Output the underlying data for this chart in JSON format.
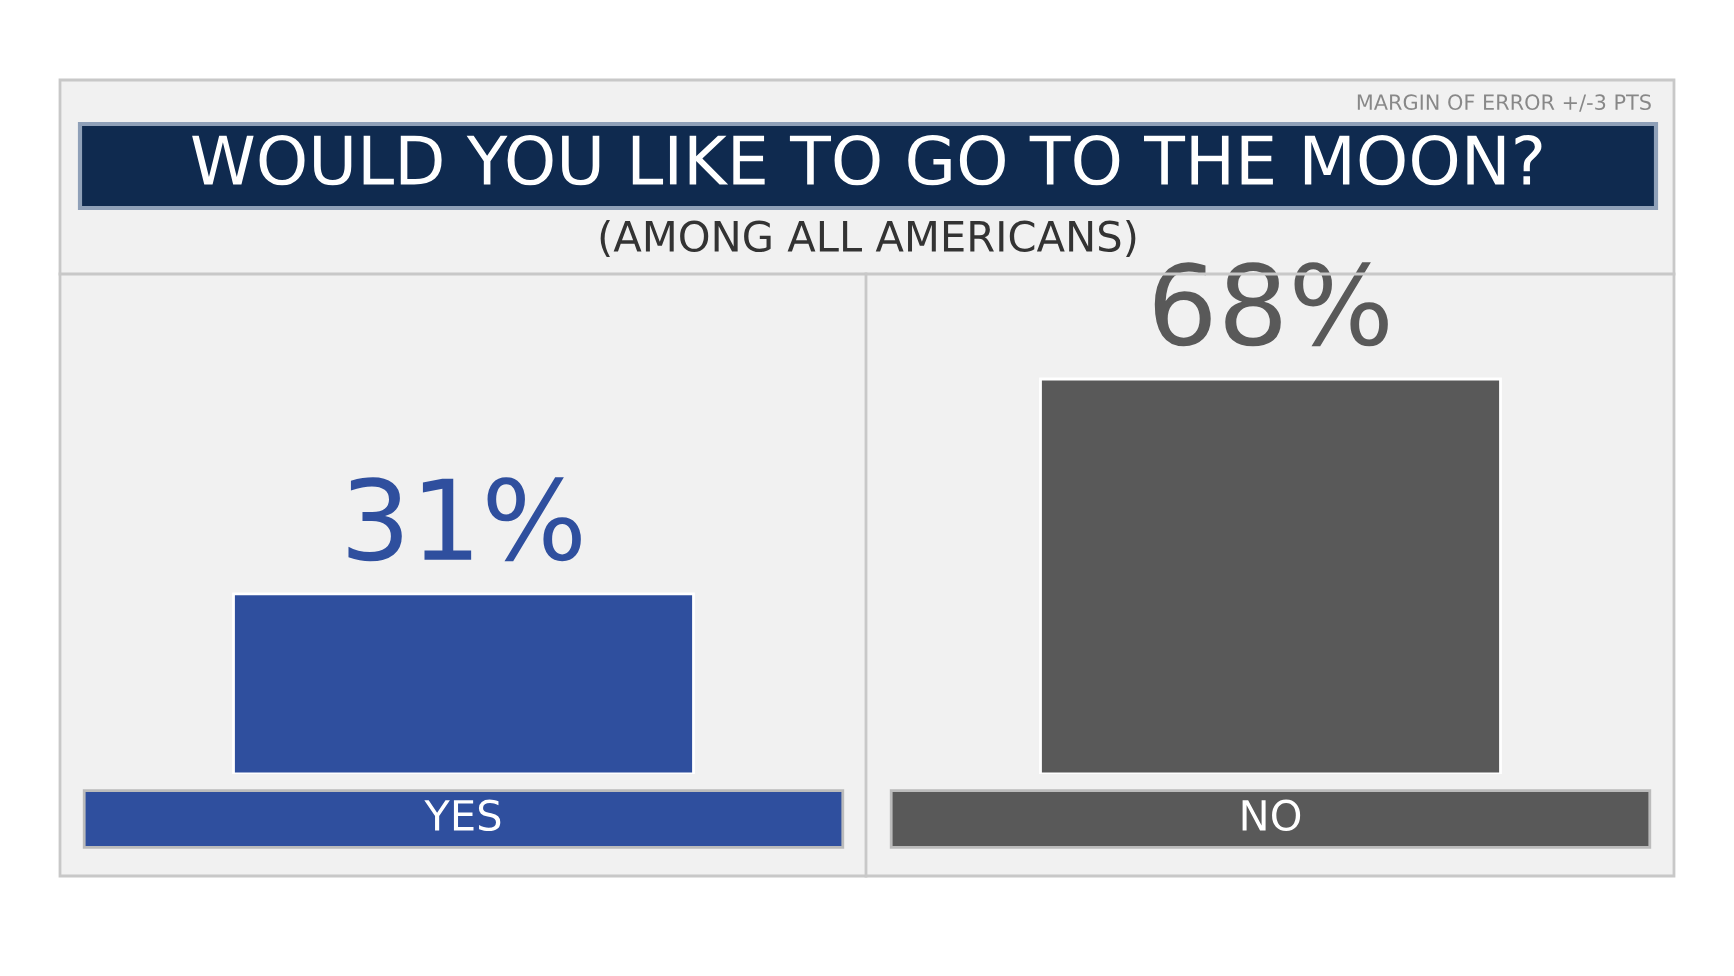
{
  "chart_data": {
    "type": "bar",
    "title": "WOULD YOU LIKE TO GO TO THE MOON?",
    "subtitle": "(AMONG ALL AMERICANS)",
    "annotations": [
      "MARGIN OF ERROR +/-3 PTS"
    ],
    "categories": [
      "YES",
      "NO"
    ],
    "values": [
      31,
      68
    ],
    "colors": [
      "#2f4f9e",
      "#595959"
    ],
    "value_labels": [
      "31%",
      "68%"
    ]
  }
}
